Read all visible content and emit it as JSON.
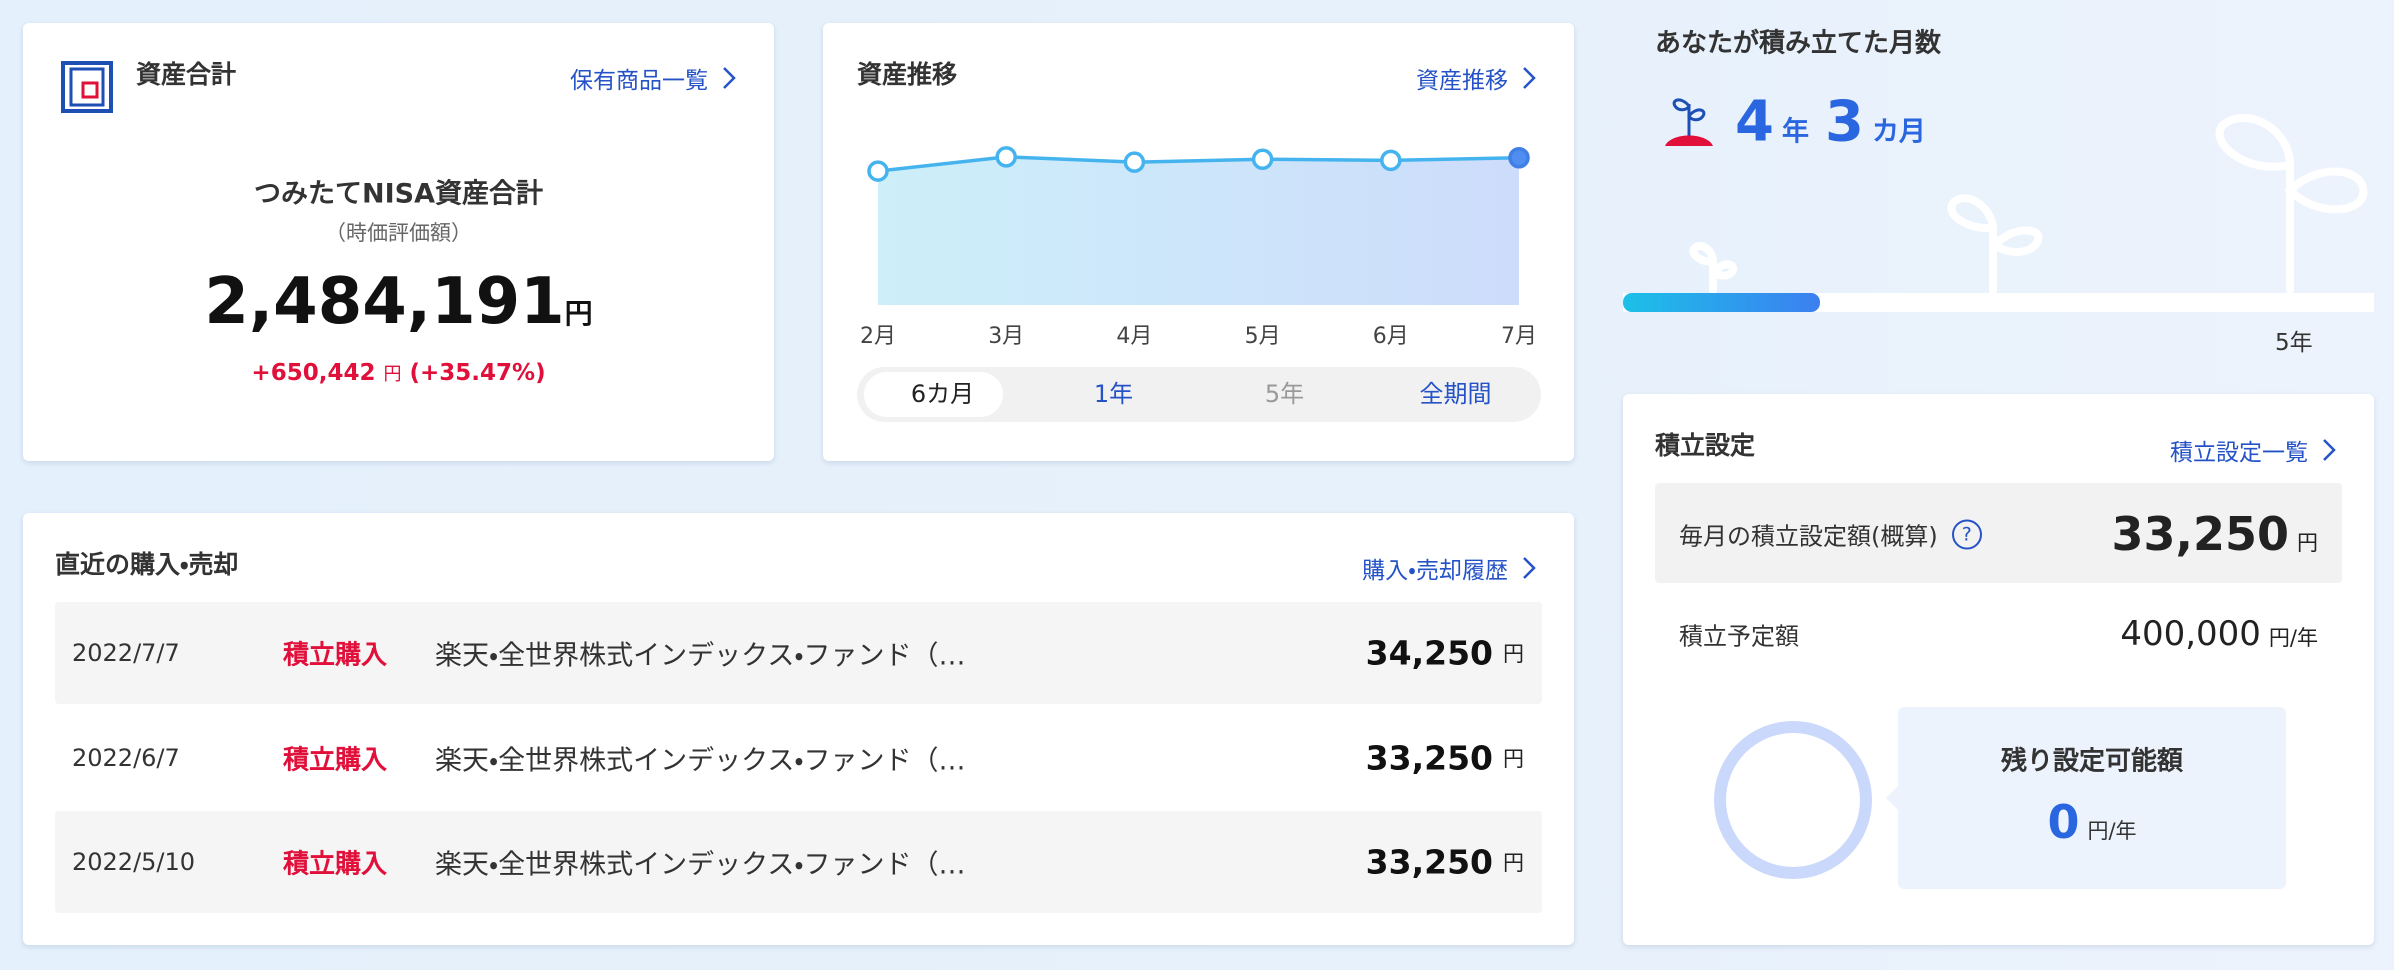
{
  "asset_total": {
    "title": "資産合計",
    "link": "保有商品一覧",
    "label": "つみたてNISA資産合計",
    "sublabel": "（時価評価額）",
    "amount": "2,484,191",
    "unit": "円",
    "gain": "+650,442",
    "gain_unit": "円",
    "gain_pct": "(+35.47%)"
  },
  "asset_trend": {
    "title": "資産推移",
    "link": "資産推移",
    "chart_data": {
      "type": "line",
      "x": [
        "2月",
        "3月",
        "4月",
        "5月",
        "6月",
        "7月"
      ],
      "values": [
        2260000,
        2500000,
        2410000,
        2460000,
        2440000,
        2484191
      ],
      "ylim": [
        0,
        2700000
      ],
      "color": "#45b4ee"
    },
    "tabs": [
      "6カ月",
      "1年",
      "5年",
      "全期間"
    ]
  },
  "recent": {
    "title": "直近の購入・売却",
    "link": "購入・売却履歴",
    "rows": [
      {
        "date": "2022/7/7",
        "type": "積立購入",
        "fund": "楽天・全世界株式インデックス・ファンド（…",
        "amount": "34,250",
        "unit": "円"
      },
      {
        "date": "2022/6/7",
        "type": "積立購入",
        "fund": "楽天・全世界株式インデックス・ファンド（…",
        "amount": "33,250",
        "unit": "円"
      },
      {
        "date": "2022/5/10",
        "type": "積立購入",
        "fund": "楽天・全世界株式インデックス・ファンド（…",
        "amount": "33,250",
        "unit": "円"
      }
    ]
  },
  "months": {
    "title": "あなたが積み立てた月数",
    "years": "4",
    "years_unit": "年",
    "months": "3",
    "months_unit": "カ月",
    "goal": "5年"
  },
  "settings": {
    "title": "積立設定",
    "link": "積立設定一覧",
    "monthly_label": "毎月の積立設定額(概算)",
    "help": "?",
    "monthly_amount": "33,250",
    "monthly_unit": "円",
    "planned_label": "積立予定額",
    "planned_amount": "400,000",
    "planned_unit": "円/年",
    "remaining_label": "残り設定可能額",
    "remaining_amount": "0",
    "remaining_unit": "円/年"
  }
}
